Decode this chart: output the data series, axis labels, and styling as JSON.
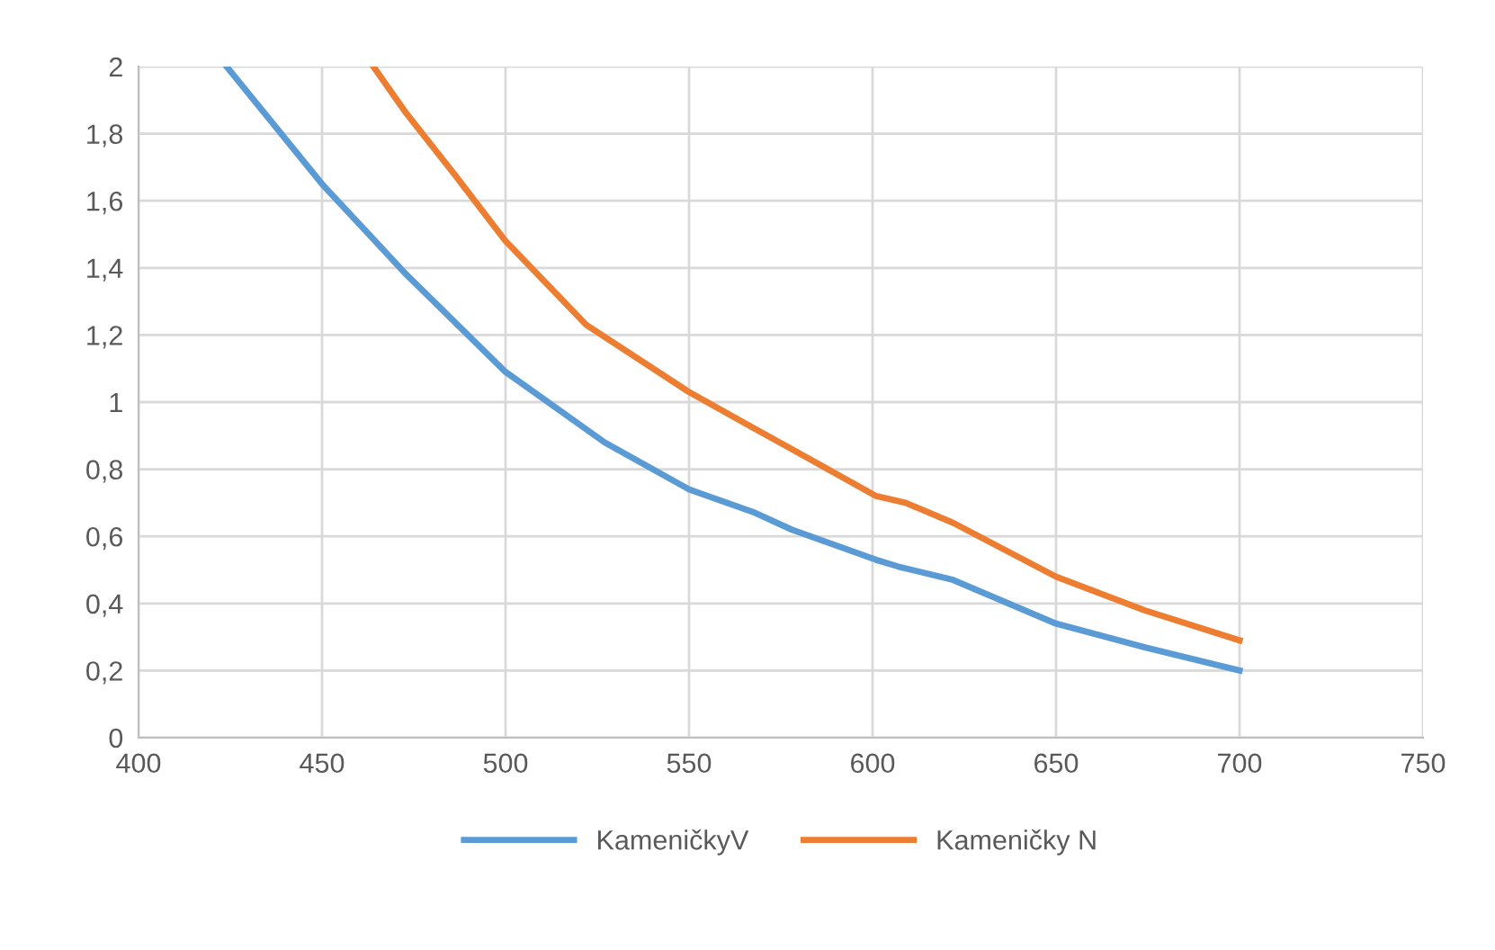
{
  "chart_data": {
    "type": "line",
    "xlim": [
      400,
      750
    ],
    "xticks": [
      400,
      450,
      500,
      550,
      600,
      650,
      700,
      750
    ],
    "ylim": [
      0,
      2
    ],
    "yticks": [
      {
        "value": 0,
        "label": "0"
      },
      {
        "value": 0.2,
        "label": "0,2"
      },
      {
        "value": 0.4,
        "label": "0,4"
      },
      {
        "value": 0.6,
        "label": "0,6"
      },
      {
        "value": 0.8,
        "label": "0,8"
      },
      {
        "value": 1,
        "label": "1"
      },
      {
        "value": 1.2,
        "label": "1,2"
      },
      {
        "value": 1.4,
        "label": "1,4"
      },
      {
        "value": 1.6,
        "label": "1,6"
      },
      {
        "value": 1.8,
        "label": "1,8"
      },
      {
        "value": 2,
        "label": "2"
      }
    ],
    "grid": true,
    "legend": "bottom",
    "marker": "none",
    "line_style": "solid",
    "series": [
      {
        "name": "KameničkyV",
        "color": "#5b9bd5",
        "x": [
          424,
          450,
          473,
          500,
          527,
          550,
          568,
          578,
          601,
          607,
          622,
          650,
          674,
          700
        ],
        "values": [
          2.0,
          1.65,
          1.38,
          1.09,
          0.88,
          0.74,
          0.67,
          0.62,
          0.53,
          0.51,
          0.47,
          0.34,
          0.27,
          0.2
        ]
      },
      {
        "name": "Kameničky N",
        "color": "#ed7d31",
        "x": [
          464,
          473,
          486,
          500,
          522,
          550,
          568,
          578,
          601,
          609,
          622,
          650,
          674,
          700
        ],
        "values": [
          2.0,
          1.86,
          1.68,
          1.48,
          1.23,
          1.03,
          0.92,
          0.86,
          0.72,
          0.7,
          0.64,
          0.48,
          0.38,
          0.29
        ]
      }
    ]
  }
}
